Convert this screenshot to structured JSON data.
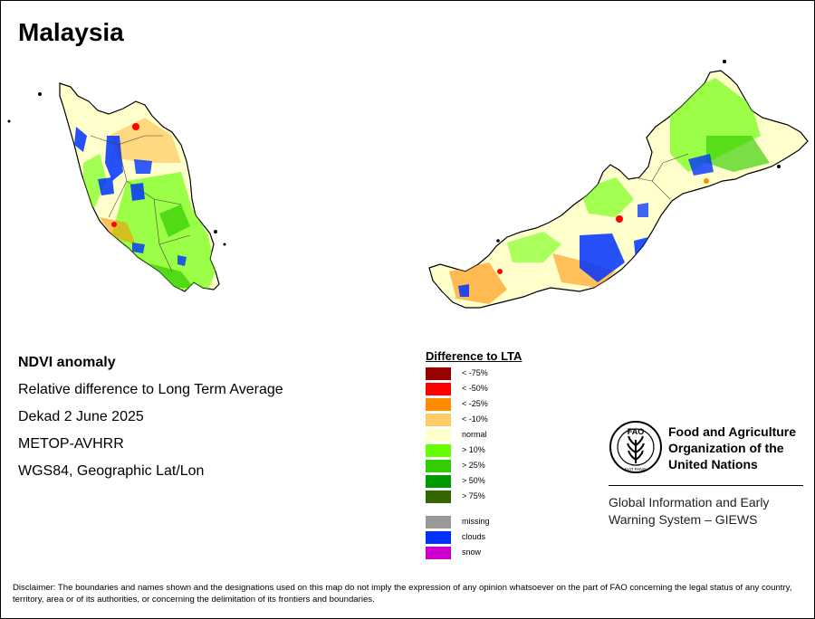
{
  "title": "Malaysia",
  "info_lines": [
    "NDVI anomaly",
    "Relative difference to Long Term Average",
    "Dekad 2 June 2025",
    "METOP-AVHRR",
    "WGS84, Geographic Lat/Lon"
  ],
  "legend": {
    "title": "Difference to LTA",
    "items": [
      {
        "label": "< -75%",
        "color": "#990000"
      },
      {
        "label": "< -50%",
        "color": "#ff0000"
      },
      {
        "label": "< -25%",
        "color": "#ff8c00"
      },
      {
        "label": "< -10%",
        "color": "#ffcc66"
      },
      {
        "label": "normal",
        "color": "#ffffcc"
      },
      {
        "label": "> 10%",
        "color": "#66ff00"
      },
      {
        "label": "> 25%",
        "color": "#33cc00"
      },
      {
        "label": "> 50%",
        "color": "#009900"
      },
      {
        "label": "> 75%",
        "color": "#336600"
      }
    ],
    "extra_items": [
      {
        "label": "missing",
        "color": "#999999"
      },
      {
        "label": "clouds",
        "color": "#0033ff"
      },
      {
        "label": "snow",
        "color": "#cc00cc"
      }
    ]
  },
  "logo": {
    "org_name": "Food and Agriculture Organization of the United Nations",
    "emblem_text": "FAO",
    "emblem_motto": "FIAT PANIS",
    "system_name": "Global Information and Early Warning System – GIEWS"
  },
  "disclaimer": "Disclaimer: The boundaries and names shown and the designations used on this map do not imply the expression of any opinion whatsoever on the part of FAO concerning the legal status of any country, territory, area or of its authorities, or concerning the delimitation of its frontiers and boundaries."
}
